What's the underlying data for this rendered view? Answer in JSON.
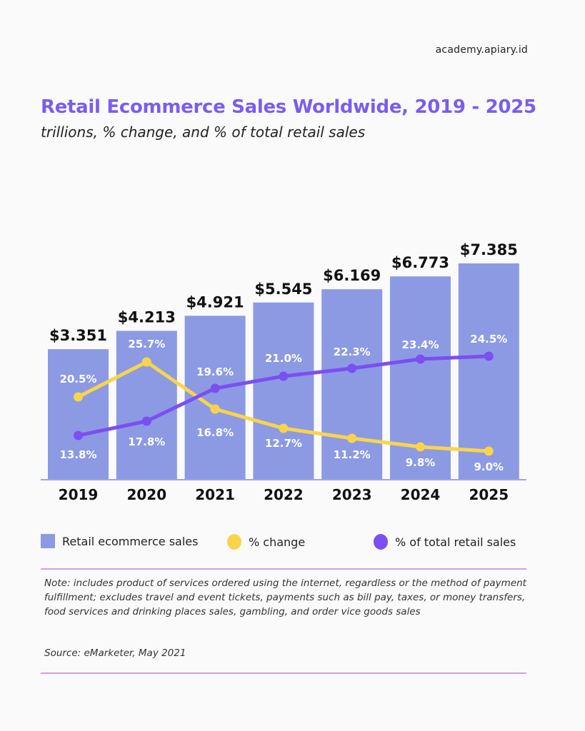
{
  "site": "academy.apiary.id",
  "colors": {
    "bar": "#8c9ae4",
    "change_line": "#f9d44b",
    "share_line": "#7b4ff0",
    "title": "#7b5cf0",
    "divider": "#c9a5e6"
  },
  "legend": {
    "bars": "Retail ecommerce sales",
    "change": "% change",
    "share": "% of total retail sales"
  },
  "note": "Note: includes product of services ordered using the internet, regardless or the method of payment fulfillment; excludes travel and event tickets, payments such as bill pay, taxes, or money transfers, food services and drinking places sales, gambling, and order vice goods sales",
  "source": "Source: eMarketer, May 2021",
  "chart_data": {
    "type": "bar",
    "title": "Retail Ecommerce Sales Worldwide, 2019 - 2025",
    "subtitle": "trillions, %  change, and % of total retail sales",
    "categories": [
      "2019",
      "2020",
      "2021",
      "2022",
      "2023",
      "2024",
      "2025"
    ],
    "series": [
      {
        "name": "Retail ecommerce sales",
        "type": "bar",
        "unit": "trillions USD",
        "values": [
          3.351,
          4.213,
          4.921,
          5.545,
          6.169,
          6.773,
          7.385
        ],
        "labels": [
          "$3.351",
          "$4.213",
          "$4.921",
          "$5.545",
          "$6.169",
          "$6.773",
          "$7.385"
        ]
      },
      {
        "name": "% change",
        "type": "line",
        "values": [
          20.5,
          25.7,
          16.8,
          12.7,
          11.2,
          9.8,
          9.0
        ],
        "labels": [
          "20.5%",
          "25.7%",
          "16.8%",
          "12.7%",
          "11.2%",
          "9.8%",
          "9.0%"
        ]
      },
      {
        "name": "% of total retail sales",
        "type": "line",
        "values": [
          13.8,
          17.8,
          19.6,
          21.0,
          22.3,
          23.4,
          24.5
        ],
        "labels": [
          "13.8%",
          "17.8%",
          "19.6%",
          "21.0%",
          "22.3%",
          "23.4%",
          "24.5%"
        ]
      }
    ],
    "xlabel": "",
    "ylabel": "",
    "ylim": [
      0,
      8.2
    ],
    "grid": false,
    "legend_position": "bottom"
  }
}
